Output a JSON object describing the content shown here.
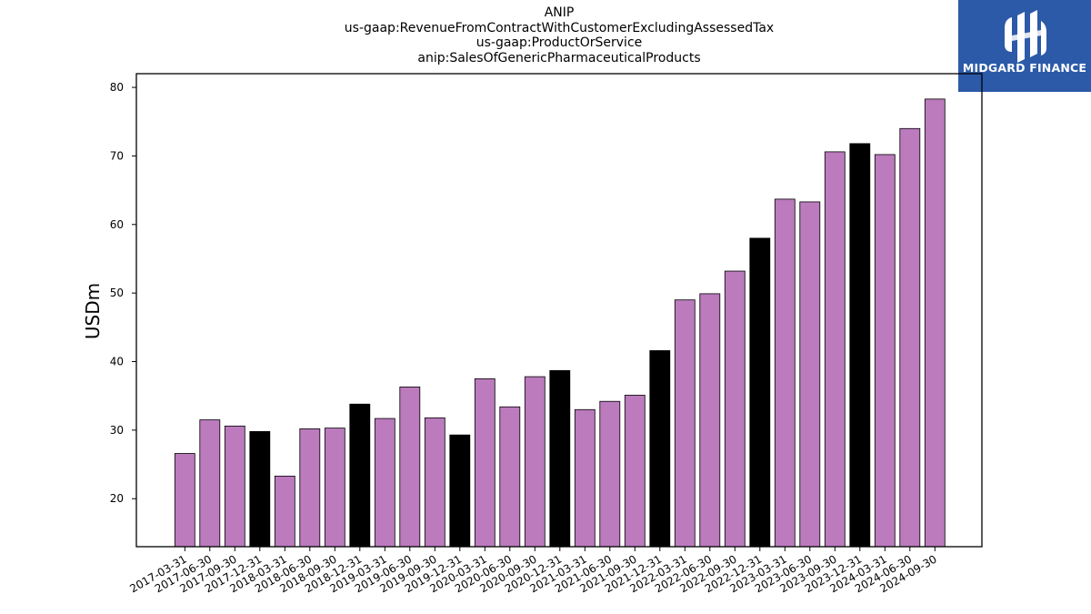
{
  "header": {
    "title_lines": [
      "ANIP",
      "us-gaap:RevenueFromContractWithCustomerExcludingAssessedTax",
      "us-gaap:ProductOrService",
      "anip:SalesOfGenericPharmaceuticalProducts"
    ]
  },
  "logo": {
    "text": "MIDGARD FINANCE",
    "icon": "midgard-logo-mark",
    "bg_color": "#2c5aa8"
  },
  "chart_data": {
    "type": "bar",
    "title": "ANIP us-gaap:RevenueFromContractWithCustomerExcludingAssessedTax us-gaap:ProductOrService anip:SalesOfGenericPharmaceuticalProducts",
    "xlabel": "",
    "ylabel": "USDm",
    "ylim": [
      13,
      82
    ],
    "yticks": [
      20,
      30,
      40,
      50,
      60,
      70,
      80
    ],
    "grid": false,
    "colors": {
      "quarter": "#bb7bbd",
      "year_end": "#000000"
    },
    "categories": [
      "2017-03-31",
      "2017-06-30",
      "2017-09-30",
      "2017-12-31",
      "2018-03-31",
      "2018-06-30",
      "2018-09-30",
      "2018-12-31",
      "2019-03-31",
      "2019-06-30",
      "2019-09-30",
      "2019-12-31",
      "2020-03-31",
      "2020-06-30",
      "2020-09-30",
      "2020-12-31",
      "2021-03-31",
      "2021-06-30",
      "2021-09-30",
      "2021-12-31",
      "2022-03-31",
      "2022-06-30",
      "2022-09-30",
      "2022-12-31",
      "2023-03-31",
      "2023-06-30",
      "2023-09-30",
      "2023-12-31",
      "2024-03-31",
      "2024-06-30",
      "2024-09-30"
    ],
    "values": [
      26.6,
      31.5,
      30.6,
      29.8,
      23.3,
      30.2,
      30.3,
      33.8,
      31.7,
      36.3,
      31.8,
      29.3,
      37.5,
      33.4,
      37.8,
      38.7,
      33.0,
      34.2,
      35.1,
      41.6,
      49.0,
      49.9,
      53.2,
      58.0,
      63.7,
      63.3,
      70.6,
      71.8,
      70.2,
      74.0,
      78.3
    ],
    "year_end_flags": [
      false,
      false,
      false,
      true,
      false,
      false,
      false,
      true,
      false,
      false,
      false,
      true,
      false,
      false,
      false,
      true,
      false,
      false,
      false,
      true,
      false,
      false,
      false,
      true,
      false,
      false,
      false,
      true,
      false,
      false,
      false
    ]
  }
}
